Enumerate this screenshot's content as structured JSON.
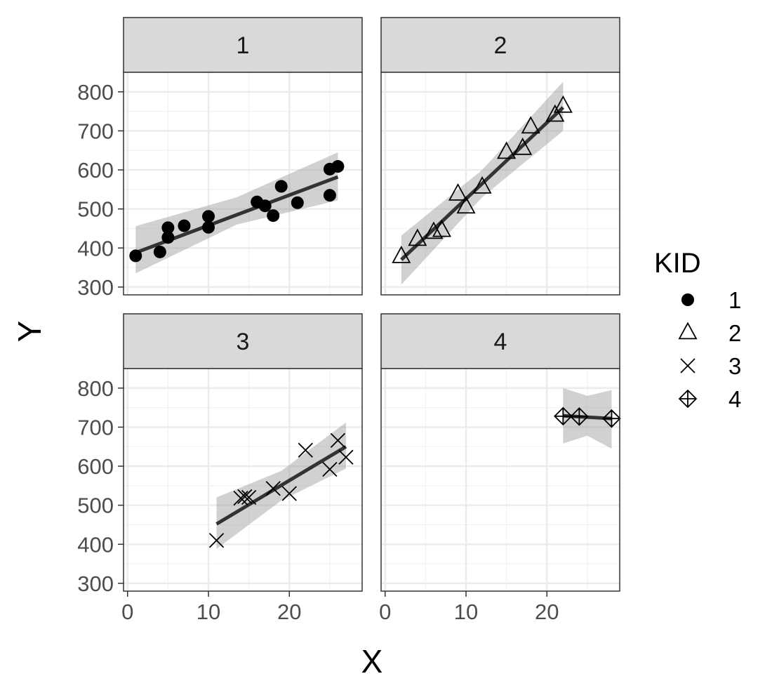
{
  "chart_data": {
    "type": "scatter",
    "facet_variable": "KID",
    "xlabel": "X",
    "ylabel": "Y",
    "xlim": [
      -0.5,
      29
    ],
    "ylim": [
      280,
      850
    ],
    "x_ticks": [
      0,
      10,
      20
    ],
    "y_ticks": [
      300,
      400,
      500,
      600,
      700,
      800
    ],
    "x_tick_labels": [
      "0",
      "10",
      "20"
    ],
    "y_tick_labels": [
      "300",
      "400",
      "500",
      "600",
      "700",
      "800"
    ],
    "grid": true,
    "legend": {
      "title": "KID",
      "placement": "right",
      "entries": [
        {
          "label": "1",
          "shape": "filled-circle"
        },
        {
          "label": "2",
          "shape": "open-triangle"
        },
        {
          "label": "3",
          "shape": "cross"
        },
        {
          "label": "4",
          "shape": "crossed-diamond"
        }
      ]
    },
    "line_color": "#333333",
    "band_color": "#999999",
    "strip_color": "#d9d9d9",
    "panels": [
      {
        "label": "1",
        "shape": "filled-circle",
        "points": [
          [
            1,
            380
          ],
          [
            4,
            390
          ],
          [
            5,
            452
          ],
          [
            5,
            427
          ],
          [
            7,
            457
          ],
          [
            10,
            481
          ],
          [
            10,
            453
          ],
          [
            16,
            518
          ],
          [
            17,
            508
          ],
          [
            18,
            483
          ],
          [
            19,
            558
          ],
          [
            21,
            516
          ],
          [
            25,
            602
          ],
          [
            25,
            535
          ],
          [
            26,
            609
          ]
        ],
        "fit": {
          "x": [
            1,
            26
          ],
          "y": [
            388,
            582
          ]
        },
        "band": {
          "x": [
            1,
            13.5,
            26
          ],
          "upper": [
            456,
            530,
            645
          ],
          "lower": [
            335,
            460,
            522
          ]
        }
      },
      {
        "label": "2",
        "shape": "open-triangle",
        "points": [
          [
            2,
            378
          ],
          [
            4,
            422
          ],
          [
            6,
            440
          ],
          [
            7,
            445
          ],
          [
            9,
            538
          ],
          [
            10,
            505
          ],
          [
            12,
            556
          ],
          [
            15,
            645
          ],
          [
            17,
            655
          ],
          [
            18,
            710
          ],
          [
            21,
            740
          ],
          [
            22,
            763
          ]
        ],
        "fit": {
          "x": [
            2,
            22
          ],
          "y": [
            370,
            760
          ]
        },
        "band": {
          "x": [
            2,
            12,
            22
          ],
          "upper": [
            432,
            600,
            826
          ],
          "lower": [
            306,
            530,
            700
          ]
        }
      },
      {
        "label": "3",
        "shape": "cross",
        "points": [
          [
            11,
            410
          ],
          [
            14,
            518
          ],
          [
            14.5,
            522
          ],
          [
            15,
            520
          ],
          [
            18,
            543
          ],
          [
            20,
            530
          ],
          [
            22,
            641
          ],
          [
            25,
            592
          ],
          [
            26,
            666
          ],
          [
            27,
            623
          ]
        ],
        "fit": {
          "x": [
            11,
            27
          ],
          "y": [
            452,
            650
          ]
        },
        "band": {
          "x": [
            11,
            19,
            27
          ],
          "upper": [
            520,
            588,
            712
          ],
          "lower": [
            388,
            512,
            594
          ]
        }
      },
      {
        "label": "4",
        "shape": "crossed-diamond",
        "points": [
          [
            22,
            728
          ],
          [
            24,
            727
          ],
          [
            28,
            722
          ]
        ],
        "fit": {
          "x": [
            22,
            28
          ],
          "y": [
            729,
            722
          ]
        },
        "band": {
          "x": [
            22,
            25,
            28
          ],
          "upper": [
            800,
            780,
            795
          ],
          "lower": [
            658,
            678,
            645
          ]
        }
      }
    ]
  }
}
